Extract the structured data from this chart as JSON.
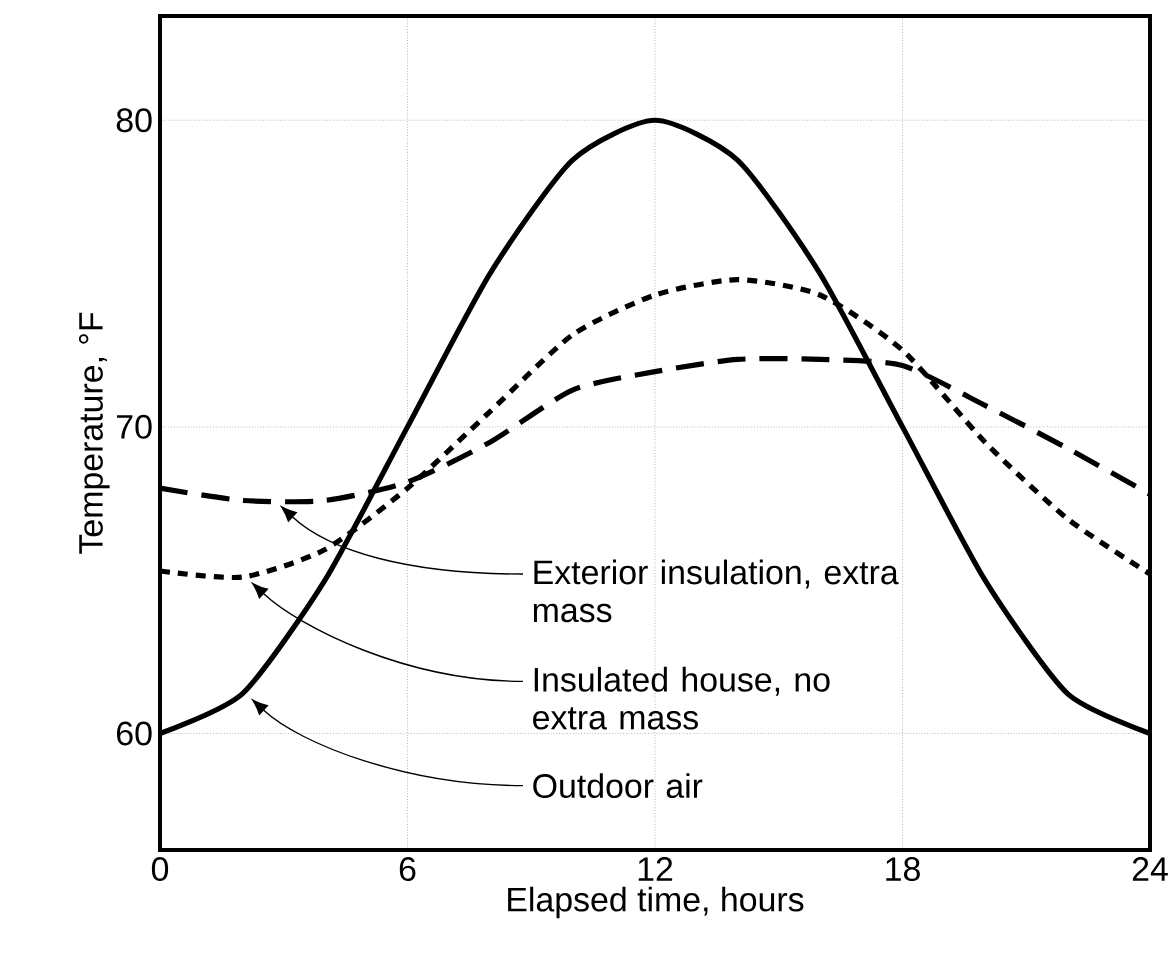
{
  "chart_data": {
    "type": "line",
    "xlabel": "Elapsed time, hours",
    "ylabel": "Temperature, °F",
    "x": [
      0,
      2,
      4,
      6,
      8,
      10,
      12,
      14,
      16,
      18,
      20,
      22,
      24
    ],
    "series": [
      {
        "name": "Exterior insulation, extra mass",
        "color": "#000000",
        "line_style": "dashed",
        "values": [
          68.0,
          67.6,
          67.6,
          68.2,
          69.5,
          71.2,
          71.8,
          72.2,
          72.2,
          72.0,
          70.7,
          69.3,
          67.8
        ]
      },
      {
        "name": "Insulated house, no extra mass",
        "color": "#000000",
        "line_style": "dotted",
        "values": [
          65.3,
          65.1,
          66.0,
          68.0,
          70.5,
          73.0,
          74.3,
          74.8,
          74.3,
          72.5,
          69.5,
          67.0,
          65.2
        ]
      },
      {
        "name": "Outdoor air",
        "color": "#000000",
        "line_style": "solid",
        "values": [
          60.0,
          61.3,
          65.0,
          70.0,
          75.0,
          78.7,
          80.0,
          78.7,
          75.0,
          70.0,
          65.0,
          61.3,
          60.0
        ]
      }
    ],
    "xlim": [
      0,
      24
    ],
    "ylim": [
      56.2,
      83.4
    ],
    "xticks": [
      0,
      6,
      12,
      18,
      24
    ],
    "yticks": [
      60,
      70,
      80
    ],
    "grid": true
  }
}
